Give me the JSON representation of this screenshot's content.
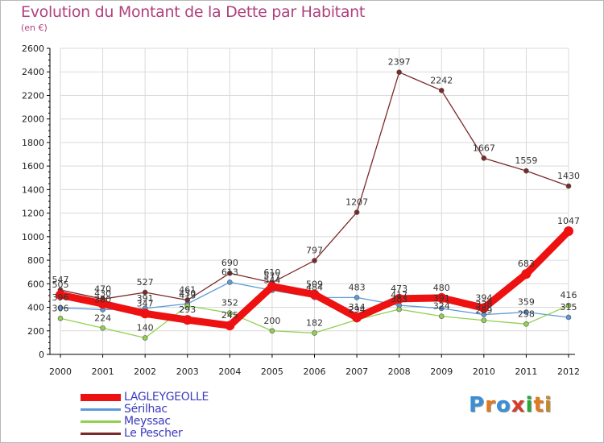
{
  "header": {
    "title": "Evolution du Montant de la Dette par Habitant",
    "subtitle": "(en €)"
  },
  "colors": {
    "title": "#b0417f",
    "grid": "#d9d9d9",
    "axis": "#000000",
    "legend_text": "#3b3bbf"
  },
  "logo": {
    "letters": [
      "P",
      "r",
      "o",
      "x",
      "i",
      "t",
      "i"
    ],
    "colors": [
      "#3a8fd6",
      "#e07a1f",
      "#3a8fd6",
      "#d93b2b",
      "#2aa63a",
      "#e07a1f",
      "#c08a2a"
    ]
  },
  "chart_data": {
    "type": "line",
    "title": "Evolution du Montant de la Dette par Habitant",
    "subtitle": "(en €)",
    "xlabel": "",
    "ylabel": "",
    "x": [
      "2000",
      "2001",
      "2002",
      "2003",
      "2004",
      "2005",
      "2006",
      "2007",
      "2008",
      "2009",
      "2010",
      "2011",
      "2012"
    ],
    "ylim": [
      0,
      2600
    ],
    "yticks": [
      0,
      200,
      400,
      600,
      800,
      1000,
      1200,
      1400,
      1600,
      1800,
      2000,
      2200,
      2400,
      2600
    ],
    "grid": true,
    "legend_position": "bottom-left",
    "series": [
      {
        "name": "LAGLEYGEOLLE",
        "color": "#ee1111",
        "thick": true,
        "values": [
          505,
          430,
          347,
          293,
          245,
          577,
          509,
          314,
          473,
          480,
          394,
          683,
          1047
        ],
        "labels": [
          "505",
          "430",
          "347",
          "293",
          "245",
          "577",
          "509",
          "314",
          "473",
          "480",
          "394",
          "683",
          "1047"
        ]
      },
      {
        "name": "Sérilhac",
        "color": "#5b9bd5",
        "thick": false,
        "values": [
          396,
          380,
          391,
          430,
          613,
          544,
          484,
          483,
          417,
          391,
          338,
          359,
          315
        ],
        "labels": [
          "396",
          "380",
          "391",
          "430",
          "613",
          "544",
          "484",
          "483",
          "417",
          "391",
          "338",
          "359",
          "315"
        ]
      },
      {
        "name": "Meyssac",
        "color": "#92d050",
        "thick": false,
        "values": [
          306,
          224,
          140,
          413,
          352,
          200,
          182,
          294,
          383,
          324,
          289,
          258,
          416
        ],
        "labels": [
          "306",
          "224",
          "140",
          "413",
          "352",
          "200",
          "182",
          "294",
          "383",
          "324",
          "289",
          "258",
          "416"
        ]
      },
      {
        "name": "Le Pescher",
        "color": "#7b2a2a",
        "thick": false,
        "values": [
          547,
          470,
          527,
          461,
          690,
          610,
          797,
          1207,
          2397,
          2242,
          1667,
          1559,
          1430
        ],
        "labels": [
          "547",
          "470",
          "527",
          "461",
          "690",
          "610",
          "797",
          "1207",
          "2397",
          "2242",
          "1667",
          "1559",
          "1430"
        ]
      }
    ]
  }
}
